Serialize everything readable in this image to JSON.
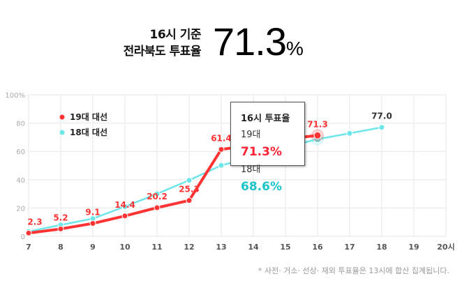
{
  "header": {
    "label_line1": "16시 기준",
    "label_line2": "전라북도 투표율",
    "value": "71.3",
    "unit": "%"
  },
  "chart_data": {
    "type": "line",
    "x": [
      7,
      8,
      9,
      10,
      11,
      12,
      13,
      14,
      15,
      16,
      17,
      18,
      19,
      20
    ],
    "x_tick_labels": [
      "7",
      "8",
      "9",
      "10",
      "11",
      "12",
      "13",
      "14",
      "15",
      "16",
      "17",
      "18",
      "19",
      "20시"
    ],
    "y_tick_labels": [
      "0",
      "20",
      "40",
      "60",
      "80",
      "100%"
    ],
    "ylim": [
      0,
      100
    ],
    "grid": true,
    "legend_placement": "top-left",
    "series": [
      {
        "name": "19대 대선",
        "color": "#ff3333",
        "x": [
          7,
          8,
          9,
          10,
          11,
          12,
          13,
          14,
          15,
          16
        ],
        "values": [
          2.3,
          5.2,
          9.1,
          14.4,
          20.2,
          25.3,
          61.4,
          64.5,
          68.8,
          71.3
        ],
        "labels": [
          "2.3",
          "5.2",
          "9.1",
          "14.4",
          "20.2",
          "25.3",
          "61.4",
          null,
          null,
          "71.3"
        ]
      },
      {
        "name": "18대 대선",
        "color": "#6de6ea",
        "x": [
          7,
          8,
          9,
          10,
          11,
          12,
          13,
          14,
          15,
          16,
          17,
          18
        ],
        "values": [
          3.4,
          8,
          12.5,
          21,
          30,
          39.6,
          50.1,
          56,
          63,
          68.6,
          72.8,
          77.0
        ],
        "labels": [
          null,
          null,
          null,
          null,
          null,
          null,
          null,
          null,
          null,
          null,
          null,
          "77.0"
        ]
      }
    ]
  },
  "tooltip": {
    "title": "16시 투표율",
    "row1_label": "19대",
    "row1_value": "71.3%",
    "row2_label": "18대",
    "row2_value": "68.6%"
  },
  "footnote": "* 사전· 거소· 선상· 재외 투표율은 13시에 합산 집계됩니다."
}
